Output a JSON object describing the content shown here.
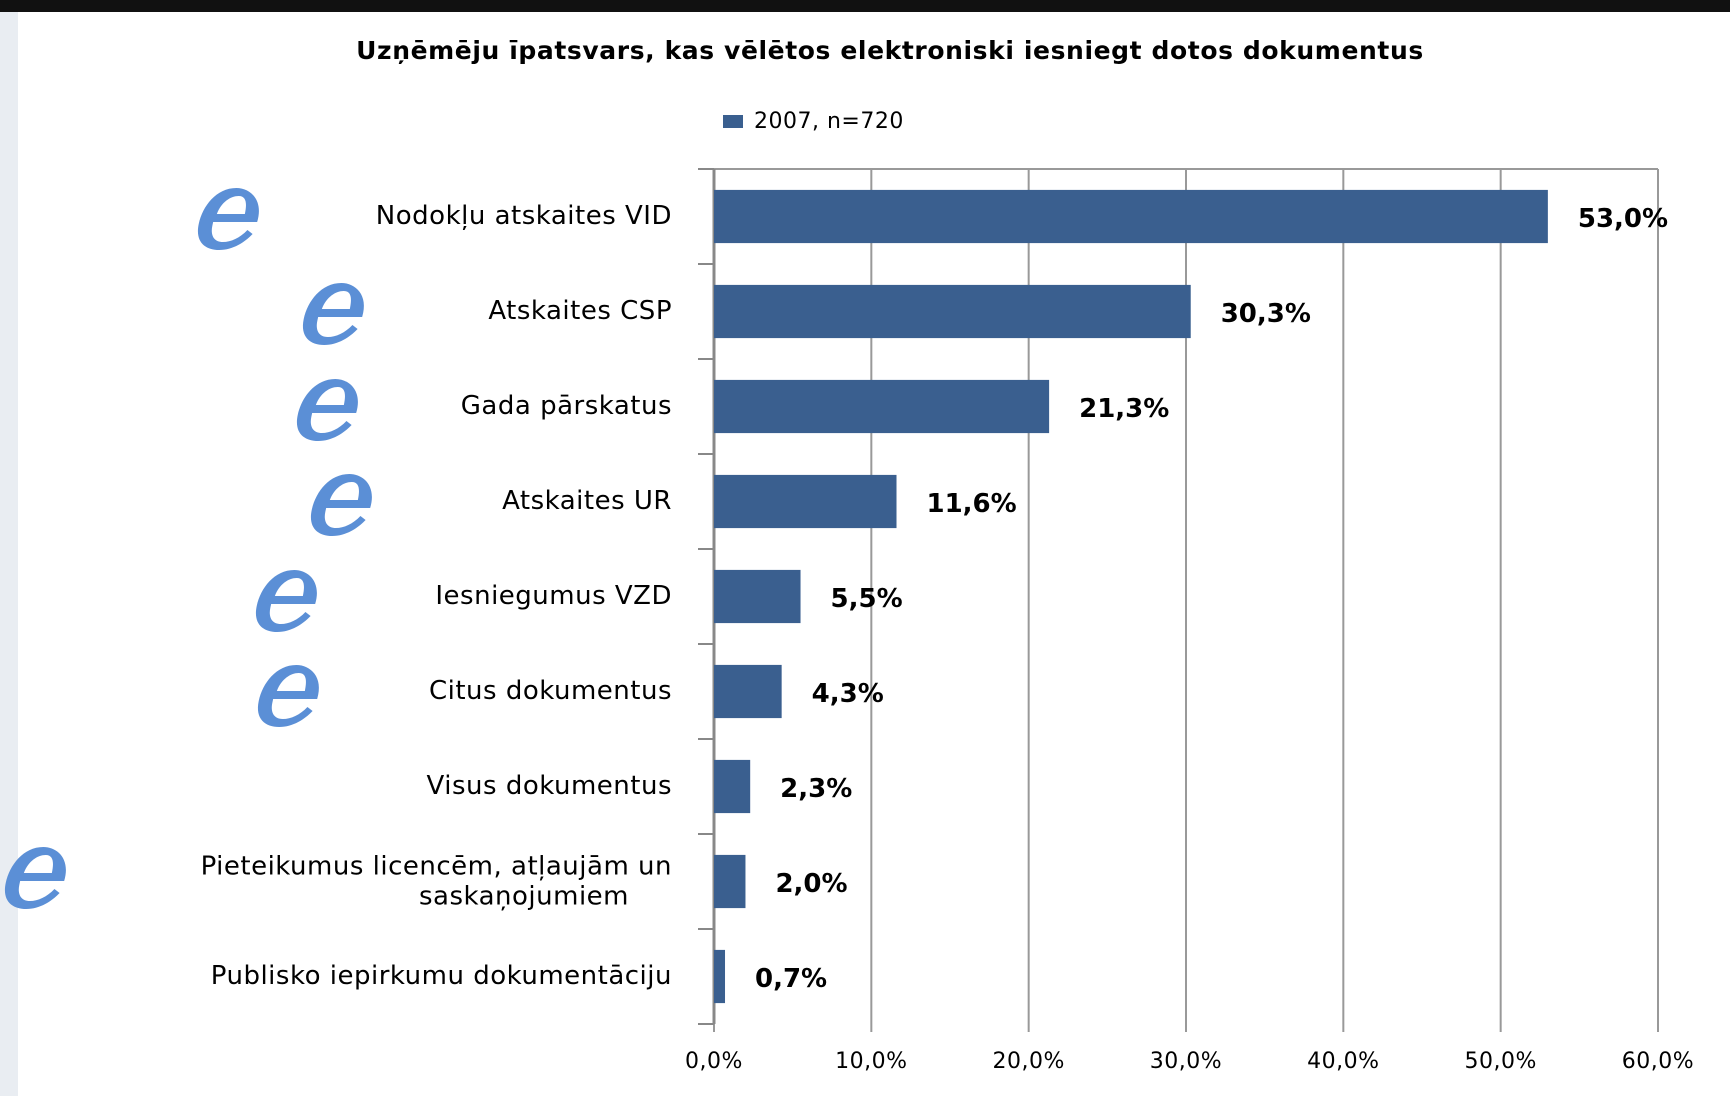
{
  "chart_data": {
    "type": "hbar",
    "title": "Uzņēmēju īpatsvars, kas vēlētos elektroniski  iesniegt dotos dokumentus",
    "categories": [
      "Nodokļu atskaites VID",
      "Atskaites CSP",
      "Gada pārskatus",
      "Atskaites UR",
      "Iesniegumus VZD",
      "Citus dokumentus",
      "Visus dokumentus",
      "Pieteikumus licencēm, atļaujām un saskaņojumiem",
      "Publisko iepirkumu dokumentāciju"
    ],
    "series": [
      {
        "name": "2007, n=720",
        "color": "#3a5f8f",
        "values": [
          53.0,
          30.3,
          21.3,
          11.6,
          5.5,
          4.3,
          2.3,
          2.0,
          0.7
        ],
        "value_labels": [
          "53,0%",
          "30,3%",
          "21,3%",
          "11,6%",
          "5,5%",
          "4,3%",
          "2,3%",
          "2,0%",
          "0,7%"
        ]
      }
    ],
    "xlim": [
      0,
      60
    ],
    "xticks": [
      {
        "value": 0,
        "label": "0,0%"
      },
      {
        "value": 10,
        "label": "10,0%"
      },
      {
        "value": 20,
        "label": "20,0%"
      },
      {
        "value": 30,
        "label": "30,0%"
      },
      {
        "value": 40,
        "label": "40,0%"
      },
      {
        "value": 50,
        "label": "50,0%"
      },
      {
        "value": 60,
        "label": "60,0%"
      }
    ],
    "grid": true,
    "legend": "top"
  }
}
